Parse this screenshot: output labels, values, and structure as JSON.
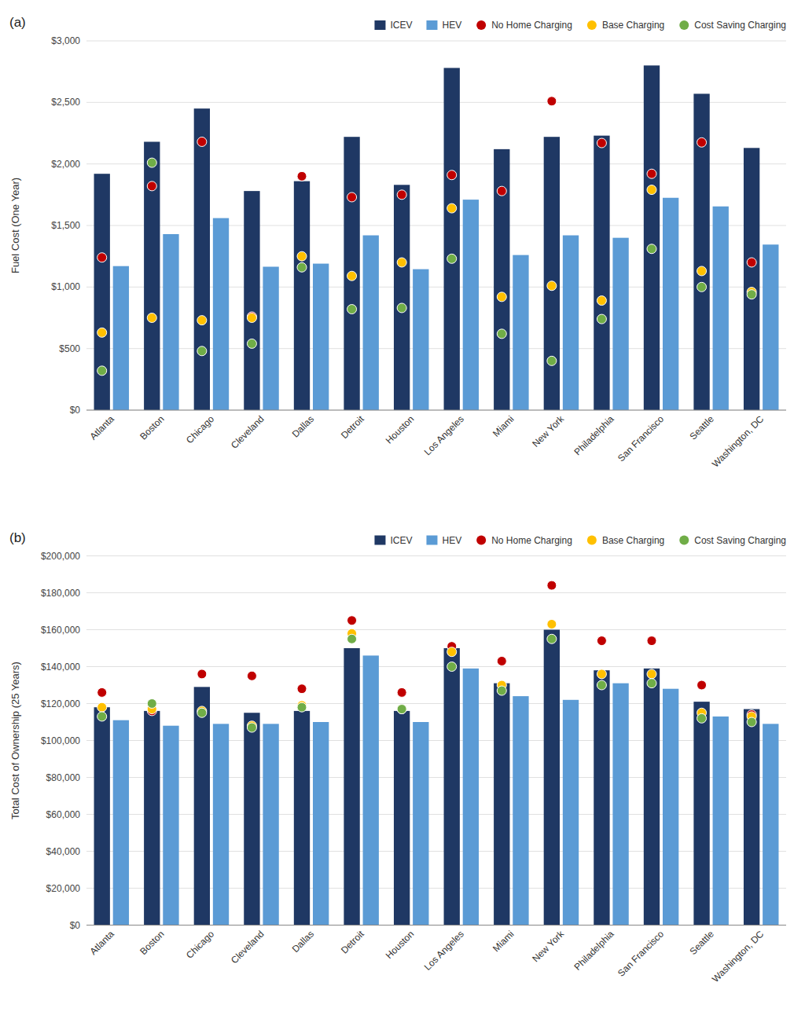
{
  "chart_data": [
    {
      "type": "bar",
      "title": "(a)",
      "y_label": "Fuel Cost (One Year)",
      "categories": [
        "Atlanta",
        "Boston",
        "Chicago",
        "Cleveland",
        "Dallas",
        "Detroit",
        "Houston",
        "Los Angeles",
        "Miami",
        "New York",
        "Philadelphia",
        "San Francisco",
        "Seattle",
        "Washington, DC"
      ],
      "series": [
        {
          "name": "ICEV",
          "type": "bar",
          "color": "#1f3864",
          "values": [
            1920,
            2180,
            2450,
            1780,
            1860,
            2220,
            1830,
            2780,
            2120,
            2220,
            2230,
            2800,
            2570,
            2130
          ]
        },
        {
          "name": "HEV",
          "type": "bar",
          "color": "#5b9bd5",
          "values": [
            1170,
            1430,
            1560,
            1165,
            1190,
            1420,
            1145,
            1710,
            1260,
            1420,
            1400,
            1725,
            1655,
            1345
          ]
        },
        {
          "name": "No Home Charging",
          "type": "scatter",
          "marker": "circle",
          "color": "#c00000",
          "values": [
            1240,
            1820,
            2180,
            760,
            1900,
            1730,
            1750,
            1910,
            1780,
            2510,
            2170,
            1920,
            2175,
            1200
          ]
        },
        {
          "name": "Base Charging",
          "type": "scatter",
          "marker": "circle",
          "color": "#ffc000",
          "values": [
            630,
            750,
            730,
            750,
            1250,
            1090,
            1200,
            1640,
            920,
            1010,
            890,
            1790,
            1130,
            960
          ]
        },
        {
          "name": "Cost Saving Charging",
          "type": "scatter",
          "marker": "circle",
          "color": "#70ad47",
          "values": [
            320,
            2010,
            480,
            540,
            1160,
            820,
            830,
            1230,
            620,
            400,
            740,
            1310,
            1000,
            940
          ]
        }
      ],
      "ylim": [
        0,
        3000
      ],
      "yticks": [
        {
          "value": 0,
          "label": "$0"
        },
        {
          "value": 500,
          "label": "$500"
        },
        {
          "value": 1000,
          "label": "$1,000"
        },
        {
          "value": 1500,
          "label": "$1,500"
        },
        {
          "value": 2000,
          "label": "$2,000"
        },
        {
          "value": 2500,
          "label": "$2,500"
        },
        {
          "value": 3000,
          "label": "$3,000"
        }
      ],
      "grid": true,
      "legend": "upper right"
    },
    {
      "type": "bar",
      "title": "(b)",
      "y_label": "Total Cost of Ownership (25 Years)",
      "categories": [
        "Atlanta",
        "Boston",
        "Chicago",
        "Cleveland",
        "Dallas",
        "Detroit",
        "Houston",
        "Los Angeles",
        "Miami",
        "New York",
        "Philadelphia",
        "San Francisco",
        "Seattle",
        "Washington, DC"
      ],
      "series": [
        {
          "name": "ICEV",
          "type": "bar",
          "color": "#1f3864",
          "values": [
            118000,
            116000,
            129000,
            115000,
            116000,
            150000,
            116000,
            150000,
            131000,
            160000,
            138000,
            139000,
            121000,
            117000
          ]
        },
        {
          "name": "HEV",
          "type": "bar",
          "color": "#5b9bd5",
          "values": [
            111000,
            108000,
            109000,
            109000,
            110000,
            146000,
            110000,
            139000,
            124000,
            122000,
            131000,
            128000,
            113000,
            109000
          ]
        },
        {
          "name": "No Home Charging",
          "type": "scatter",
          "marker": "circle",
          "color": "#c00000",
          "values": [
            126000,
            116000,
            136000,
            135000,
            128000,
            165000,
            126000,
            151000,
            143000,
            184000,
            154000,
            154000,
            130000,
            114000
          ]
        },
        {
          "name": "Base Charging",
          "type": "scatter",
          "marker": "circle",
          "color": "#ffc000",
          "values": [
            118000,
            117000,
            116000,
            108000,
            119000,
            158000,
            117000,
            148000,
            130000,
            163000,
            136000,
            136000,
            115000,
            113000
          ]
        },
        {
          "name": "Cost Saving Charging",
          "type": "scatter",
          "marker": "circle",
          "color": "#70ad47",
          "values": [
            113000,
            120000,
            115000,
            107000,
            118000,
            155000,
            117000,
            140000,
            127000,
            155000,
            130000,
            131000,
            112000,
            110000
          ]
        }
      ],
      "ylim": [
        0,
        200000
      ],
      "yticks": [
        {
          "value": 0,
          "label": "$0"
        },
        {
          "value": 20000,
          "label": "$20,000"
        },
        {
          "value": 40000,
          "label": "$40,000"
        },
        {
          "value": 60000,
          "label": "$60,000"
        },
        {
          "value": 80000,
          "label": "$80,000"
        },
        {
          "value": 100000,
          "label": "$100,000"
        },
        {
          "value": 120000,
          "label": "$120,000"
        },
        {
          "value": 140000,
          "label": "$140,000"
        },
        {
          "value": 160000,
          "label": "$160,000"
        },
        {
          "value": 180000,
          "label": "$180,000"
        },
        {
          "value": 200000,
          "label": "$200,000"
        }
      ],
      "grid": true,
      "legend": "upper right"
    }
  ]
}
